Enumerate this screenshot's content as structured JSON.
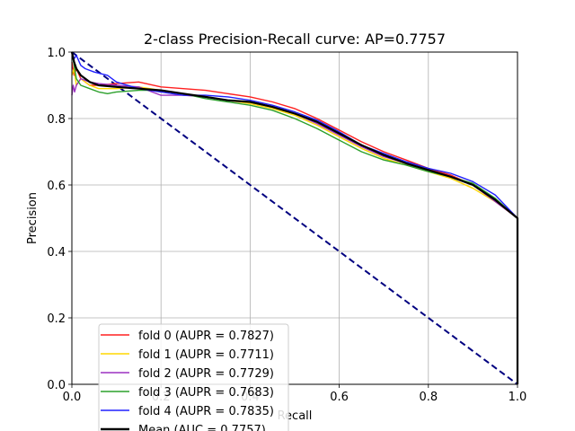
{
  "chart_data": {
    "type": "line",
    "title": "2-class Precision-Recall curve: AP=0.7757",
    "xlabel": "Recall",
    "ylabel": "Precision",
    "xlim": [
      0.0,
      1.0
    ],
    "ylim": [
      0.0,
      1.0
    ],
    "xticks": [
      "0.0",
      "0.2",
      "0.4",
      "0.6",
      "0.8",
      "1.0"
    ],
    "yticks": [
      "0.0",
      "0.2",
      "0.4",
      "0.6",
      "0.8",
      "1.0"
    ],
    "grid": true,
    "legend_position": "lower-left",
    "series": [
      {
        "name": "fold 0 (AUPR = 0.7827)",
        "color": "#ff2020",
        "x": [
          0.0,
          0.005,
          0.01,
          0.02,
          0.04,
          0.06,
          0.1,
          0.15,
          0.2,
          0.25,
          0.3,
          0.35,
          0.4,
          0.45,
          0.5,
          0.55,
          0.6,
          0.65,
          0.7,
          0.75,
          0.8,
          0.85,
          0.9,
          0.95,
          1.0,
          1.0
        ],
        "y": [
          0.97,
          0.93,
          0.95,
          0.92,
          0.9,
          0.9,
          0.905,
          0.91,
          0.895,
          0.89,
          0.885,
          0.875,
          0.865,
          0.85,
          0.83,
          0.8,
          0.765,
          0.73,
          0.7,
          0.675,
          0.65,
          0.63,
          0.6,
          0.55,
          0.5,
          0.0
        ]
      },
      {
        "name": "fold 1 (AUPR = 0.7711)",
        "color": "#ffd700",
        "x": [
          0.0,
          0.005,
          0.01,
          0.02,
          0.04,
          0.06,
          0.1,
          0.15,
          0.2,
          0.25,
          0.3,
          0.35,
          0.4,
          0.45,
          0.5,
          0.55,
          0.6,
          0.65,
          0.7,
          0.75,
          0.8,
          0.85,
          0.9,
          0.95,
          1.0,
          1.0
        ],
        "y": [
          0.93,
          0.95,
          0.9,
          0.92,
          0.9,
          0.89,
          0.89,
          0.895,
          0.885,
          0.875,
          0.865,
          0.855,
          0.845,
          0.83,
          0.81,
          0.78,
          0.745,
          0.71,
          0.68,
          0.66,
          0.64,
          0.62,
          0.59,
          0.55,
          0.5,
          0.0
        ]
      },
      {
        "name": "fold 2 (AUPR = 0.7729)",
        "color": "#9b30c0",
        "x": [
          0.0,
          0.003,
          0.006,
          0.01,
          0.02,
          0.04,
          0.06,
          0.1,
          0.15,
          0.2,
          0.25,
          0.3,
          0.35,
          0.4,
          0.45,
          0.5,
          0.55,
          0.6,
          0.65,
          0.7,
          0.75,
          0.8,
          0.85,
          0.9,
          0.95,
          1.0,
          1.0
        ],
        "y": [
          0.87,
          0.9,
          0.88,
          0.9,
          0.92,
          0.91,
          0.905,
          0.9,
          0.895,
          0.87,
          0.87,
          0.865,
          0.855,
          0.85,
          0.835,
          0.815,
          0.785,
          0.75,
          0.715,
          0.685,
          0.665,
          0.645,
          0.625,
          0.6,
          0.55,
          0.5,
          0.0
        ]
      },
      {
        "name": "fold 3 (AUPR = 0.7683)",
        "color": "#2ca02c",
        "x": [
          0.0,
          0.005,
          0.01,
          0.02,
          0.04,
          0.06,
          0.08,
          0.1,
          0.15,
          0.2,
          0.25,
          0.3,
          0.35,
          0.4,
          0.45,
          0.5,
          0.55,
          0.6,
          0.65,
          0.7,
          0.75,
          0.8,
          0.85,
          0.9,
          0.95,
          1.0,
          1.0
        ],
        "y": [
          1.0,
          0.96,
          0.92,
          0.9,
          0.89,
          0.88,
          0.875,
          0.88,
          0.885,
          0.885,
          0.875,
          0.86,
          0.85,
          0.84,
          0.825,
          0.8,
          0.77,
          0.735,
          0.7,
          0.675,
          0.66,
          0.64,
          0.625,
          0.605,
          0.56,
          0.5,
          0.0
        ]
      },
      {
        "name": "fold 4 (AUPR = 0.7835)",
        "color": "#2020ff",
        "x": [
          0.0,
          0.005,
          0.01,
          0.02,
          0.03,
          0.05,
          0.08,
          0.1,
          0.15,
          0.2,
          0.25,
          0.3,
          0.35,
          0.4,
          0.45,
          0.5,
          0.55,
          0.6,
          0.65,
          0.7,
          0.75,
          0.8,
          0.85,
          0.9,
          0.95,
          1.0,
          1.0
        ],
        "y": [
          1.0,
          0.98,
          0.99,
          0.96,
          0.95,
          0.94,
          0.93,
          0.91,
          0.89,
          0.88,
          0.87,
          0.87,
          0.865,
          0.855,
          0.84,
          0.82,
          0.795,
          0.76,
          0.72,
          0.695,
          0.67,
          0.65,
          0.635,
          0.61,
          0.57,
          0.5,
          0.0
        ]
      },
      {
        "name": "Mean (AUC = 0.7757)",
        "color": "#000000",
        "x": [
          0.0,
          0.005,
          0.01,
          0.02,
          0.04,
          0.06,
          0.1,
          0.15,
          0.2,
          0.25,
          0.3,
          0.35,
          0.4,
          0.45,
          0.5,
          0.55,
          0.6,
          0.65,
          0.7,
          0.75,
          0.8,
          0.85,
          0.9,
          0.95,
          1.0,
          1.0
        ],
        "y": [
          1.0,
          0.97,
          0.95,
          0.93,
          0.91,
          0.9,
          0.895,
          0.89,
          0.885,
          0.875,
          0.865,
          0.855,
          0.85,
          0.835,
          0.815,
          0.79,
          0.755,
          0.72,
          0.69,
          0.665,
          0.645,
          0.625,
          0.6,
          0.555,
          0.5,
          0.0
        ]
      },
      {
        "name": "",
        "color": "#000080",
        "dashed": true,
        "x": [
          0.0,
          1.0
        ],
        "y": [
          1.0,
          0.0
        ]
      }
    ]
  }
}
